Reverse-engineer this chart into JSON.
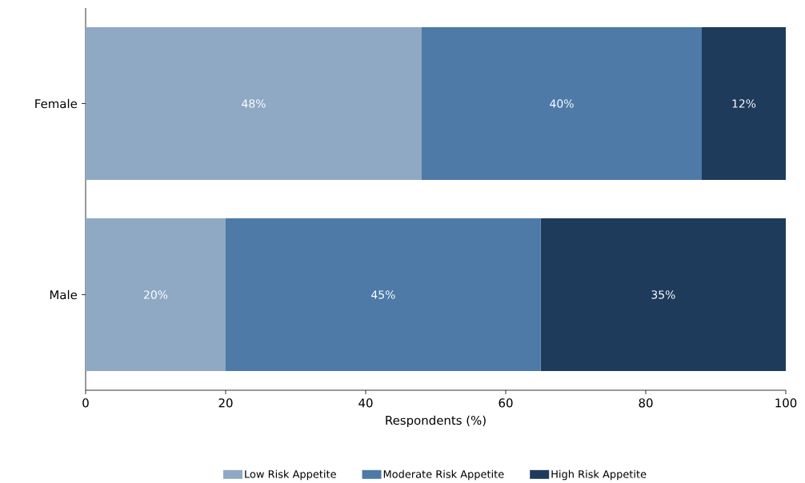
{
  "chart_data": {
    "type": "bar",
    "orientation": "horizontal",
    "stacked": true,
    "categories": [
      "Female",
      "Male"
    ],
    "series": [
      {
        "name": "Low Risk Appetite",
        "color": "#8fa9c4",
        "values": [
          48,
          20
        ],
        "value_labels": [
          "48%",
          "20%"
        ]
      },
      {
        "name": "Moderate Risk Appetite",
        "color": "#4d7aa7",
        "values": [
          40,
          45
        ],
        "value_labels": [
          "40%",
          "45%"
        ]
      },
      {
        "name": "High Risk Appetite",
        "color": "#1f3b5c",
        "values": [
          12,
          35
        ],
        "value_labels": [
          "12%",
          "35%"
        ]
      }
    ],
    "xlim": [
      0,
      100
    ],
    "xticks": [
      0,
      20,
      40,
      60,
      80,
      100
    ],
    "xlabel": "Respondents (%)",
    "legend": "bottom",
    "grid": false
  }
}
